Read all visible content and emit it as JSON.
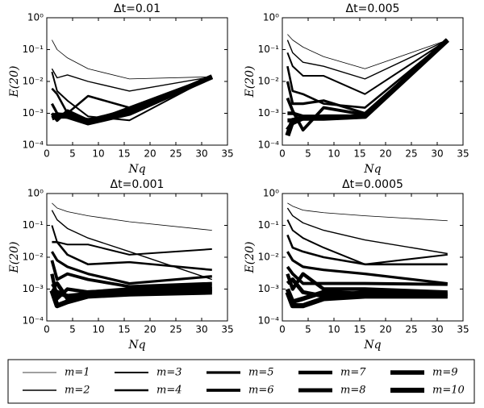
{
  "chart_data": [
    {
      "type": "line",
      "title": "Δt=0.01",
      "xlabel": "Nq",
      "ylabel": "E(20)",
      "log_y": true,
      "grid": false,
      "xlim": [
        0,
        35
      ],
      "xticks": [
        0,
        5,
        10,
        15,
        20,
        25,
        30,
        35
      ],
      "ylim": [
        0.0001,
        1
      ],
      "yticks": [
        {
          "value": 0.0001,
          "label": "10⁻⁴"
        },
        {
          "value": 0.001,
          "label": "10⁻³"
        },
        {
          "value": 0.01,
          "label": "10⁻²"
        },
        {
          "value": 0.1,
          "label": "10⁻¹"
        },
        {
          "value": 1,
          "label": "10⁰"
        }
      ],
      "x": [
        1,
        2,
        4,
        8,
        16,
        32
      ],
      "series": [
        {
          "name": "m=1",
          "color": "#000000",
          "values": [
            0.2,
            0.1,
            0.055,
            0.025,
            0.012,
            0.014
          ]
        },
        {
          "name": "m=2",
          "color": "#000000",
          "values": [
            0.025,
            0.013,
            0.016,
            0.01,
            0.005,
            0.014
          ]
        },
        {
          "name": "m=3",
          "color": "#000000",
          "values": [
            0.02,
            0.005,
            0.0025,
            0.0008,
            0.0006,
            0.014
          ]
        },
        {
          "name": "m=4",
          "color": "#000000",
          "values": [
            0.006,
            0.004,
            0.001,
            0.0035,
            0.0015,
            0.014
          ]
        },
        {
          "name": "m=5",
          "color": "#000000",
          "values": [
            0.002,
            0.001,
            0.0008,
            0.0005,
            0.0015,
            0.014
          ]
        },
        {
          "name": "m=6",
          "color": "#000000",
          "values": [
            0.001,
            0.0006,
            0.0012,
            0.0006,
            0.0013,
            0.014
          ]
        },
        {
          "name": "m=7",
          "color": "#000000",
          "values": [
            0.0009,
            0.0008,
            0.001,
            0.0005,
            0.0012,
            0.014
          ]
        },
        {
          "name": "m=8",
          "color": "#000000",
          "values": [
            0.0008,
            0.0009,
            0.0009,
            0.0006,
            0.0011,
            0.014
          ]
        },
        {
          "name": "m=9",
          "color": "#000000",
          "values": [
            0.0007,
            0.0008,
            0.0008,
            0.0006,
            0.001,
            0.014
          ]
        },
        {
          "name": "m=10",
          "color": "#000000",
          "values": [
            0.0008,
            0.0009,
            0.0008,
            0.0005,
            0.001,
            0.014
          ]
        }
      ]
    },
    {
      "type": "line",
      "title": "Δt=0.005",
      "xlabel": "Nq",
      "ylabel": "E(20)",
      "log_y": true,
      "grid": false,
      "xlim": [
        0,
        35
      ],
      "xticks": [
        0,
        5,
        10,
        15,
        20,
        25,
        30,
        35
      ],
      "ylim": [
        0.0001,
        1
      ],
      "yticks": [
        {
          "value": 0.0001,
          "label": "10⁻⁴"
        },
        {
          "value": 0.001,
          "label": "10⁻³"
        },
        {
          "value": 0.01,
          "label": "10⁻²"
        },
        {
          "value": 0.1,
          "label": "10⁻¹"
        },
        {
          "value": 1,
          "label": "10⁰"
        }
      ],
      "x": [
        1,
        2,
        4,
        8,
        16,
        32
      ],
      "series": [
        {
          "name": "m=1",
          "color": "#000000",
          "values": [
            0.3,
            0.2,
            0.12,
            0.06,
            0.025,
            0.2
          ]
        },
        {
          "name": "m=2",
          "color": "#000000",
          "values": [
            0.2,
            0.08,
            0.04,
            0.03,
            0.012,
            0.2
          ]
        },
        {
          "name": "m=3",
          "color": "#000000",
          "values": [
            0.08,
            0.03,
            0.015,
            0.015,
            0.004,
            0.2
          ]
        },
        {
          "name": "m=4",
          "color": "#000000",
          "values": [
            0.03,
            0.005,
            0.004,
            0.002,
            0.0015,
            0.2
          ]
        },
        {
          "name": "m=5",
          "color": "#000000",
          "values": [
            0.01,
            0.002,
            0.002,
            0.0025,
            0.001,
            0.2
          ]
        },
        {
          "name": "m=6",
          "color": "#000000",
          "values": [
            0.003,
            0.0012,
            0.0003,
            0.0015,
            0.0009,
            0.2
          ]
        },
        {
          "name": "m=7",
          "color": "#000000",
          "values": [
            0.001,
            0.001,
            0.0008,
            0.0008,
            0.0008,
            0.2
          ]
        },
        {
          "name": "m=8",
          "color": "#000000",
          "values": [
            0.0006,
            0.0006,
            0.0007,
            0.0008,
            0.0008,
            0.2
          ]
        },
        {
          "name": "m=9",
          "color": "#000000",
          "values": [
            0.0003,
            0.0005,
            0.0007,
            0.0007,
            0.0008,
            0.2
          ]
        },
        {
          "name": "m=10",
          "color": "#000000",
          "values": [
            0.0002,
            0.0006,
            0.0007,
            0.0007,
            0.0008,
            0.2
          ]
        }
      ]
    },
    {
      "type": "line",
      "title": "Δt=0.001",
      "xlabel": "Nq",
      "ylabel": "E(20)",
      "log_y": true,
      "grid": false,
      "xlim": [
        0,
        35
      ],
      "xticks": [
        0,
        5,
        10,
        15,
        20,
        25,
        30,
        35
      ],
      "ylim": [
        0.0001,
        1
      ],
      "yticks": [
        {
          "value": 0.0001,
          "label": "10⁻⁴"
        },
        {
          "value": 0.001,
          "label": "10⁻³"
        },
        {
          "value": 0.01,
          "label": "10⁻²"
        },
        {
          "value": 0.1,
          "label": "10⁻¹"
        },
        {
          "value": 1,
          "label": "10⁰"
        }
      ],
      "x": [
        1,
        2,
        4,
        8,
        16,
        32
      ],
      "series": [
        {
          "name": "m=1",
          "color": "#000000",
          "values": [
            0.5,
            0.35,
            0.27,
            0.2,
            0.13,
            0.07
          ]
        },
        {
          "name": "m=2",
          "color": "#000000",
          "values": [
            0.3,
            0.15,
            0.08,
            0.04,
            0.015,
            0.002
          ]
        },
        {
          "name": "m=3",
          "color": "#000000",
          "values": [
            0.1,
            0.03,
            0.025,
            0.025,
            0.012,
            0.018
          ]
        },
        {
          "name": "m=4",
          "color": "#000000",
          "values": [
            0.03,
            0.03,
            0.012,
            0.006,
            0.007,
            0.004
          ]
        },
        {
          "name": "m=5",
          "color": "#000000",
          "values": [
            0.015,
            0.008,
            0.005,
            0.003,
            0.0015,
            0.0025
          ]
        },
        {
          "name": "m=6",
          "color": "#000000",
          "values": [
            0.008,
            0.002,
            0.003,
            0.002,
            0.0012,
            0.0015
          ]
        },
        {
          "name": "m=7",
          "color": "#000000",
          "values": [
            0.003,
            0.0005,
            0.001,
            0.0008,
            0.001,
            0.0012
          ]
        },
        {
          "name": "m=8",
          "color": "#000000",
          "values": [
            0.0012,
            0.0015,
            0.0005,
            0.0008,
            0.0009,
            0.001
          ]
        },
        {
          "name": "m=9",
          "color": "#000000",
          "values": [
            0.001,
            0.0008,
            0.0006,
            0.0007,
            0.0008,
            0.0009
          ]
        },
        {
          "name": "m=10",
          "color": "#000000",
          "values": [
            0.0009,
            0.0003,
            0.0004,
            0.0006,
            0.0007,
            0.0008
          ]
        }
      ]
    },
    {
      "type": "line",
      "title": "Δt=0.0005",
      "xlabel": "Nq",
      "ylabel": "E(20)",
      "log_y": true,
      "grid": false,
      "xlim": [
        0,
        35
      ],
      "xticks": [
        0,
        5,
        10,
        15,
        20,
        25,
        30,
        35
      ],
      "ylim": [
        0.0001,
        1
      ],
      "yticks": [
        {
          "value": 0.0001,
          "label": "10⁻⁴"
        },
        {
          "value": 0.001,
          "label": "10⁻³"
        },
        {
          "value": 0.01,
          "label": "10⁻²"
        },
        {
          "value": 0.1,
          "label": "10⁻¹"
        },
        {
          "value": 1,
          "label": "10⁰"
        }
      ],
      "x": [
        1,
        2,
        4,
        8,
        16,
        32
      ],
      "series": [
        {
          "name": "m=1",
          "color": "#000000",
          "values": [
            0.5,
            0.4,
            0.3,
            0.25,
            0.2,
            0.14
          ]
        },
        {
          "name": "m=2",
          "color": "#000000",
          "values": [
            0.35,
            0.2,
            0.12,
            0.07,
            0.035,
            0.013
          ]
        },
        {
          "name": "m=3",
          "color": "#000000",
          "values": [
            0.15,
            0.07,
            0.04,
            0.02,
            0.006,
            0.012
          ]
        },
        {
          "name": "m=4",
          "color": "#000000",
          "values": [
            0.05,
            0.02,
            0.015,
            0.01,
            0.006,
            0.006
          ]
        },
        {
          "name": "m=5",
          "color": "#000000",
          "values": [
            0.015,
            0.008,
            0.005,
            0.004,
            0.003,
            0.0015
          ]
        },
        {
          "name": "m=6",
          "color": "#000000",
          "values": [
            0.005,
            0.003,
            0.0015,
            0.0015,
            0.0015,
            0.0014
          ]
        },
        {
          "name": "m=7",
          "color": "#000000",
          "values": [
            0.003,
            0.001,
            0.003,
            0.001,
            0.001,
            0.0008
          ]
        },
        {
          "name": "m=8",
          "color": "#000000",
          "values": [
            0.0015,
            0.002,
            0.0008,
            0.0006,
            0.0008,
            0.0007
          ]
        },
        {
          "name": "m=9",
          "color": "#000000",
          "values": [
            0.001,
            0.0004,
            0.0005,
            0.0008,
            0.0007,
            0.0006
          ]
        },
        {
          "name": "m=10",
          "color": "#000000",
          "values": [
            0.0008,
            0.0003,
            0.0003,
            0.0005,
            0.0006,
            0.0006
          ]
        }
      ]
    }
  ]
}
